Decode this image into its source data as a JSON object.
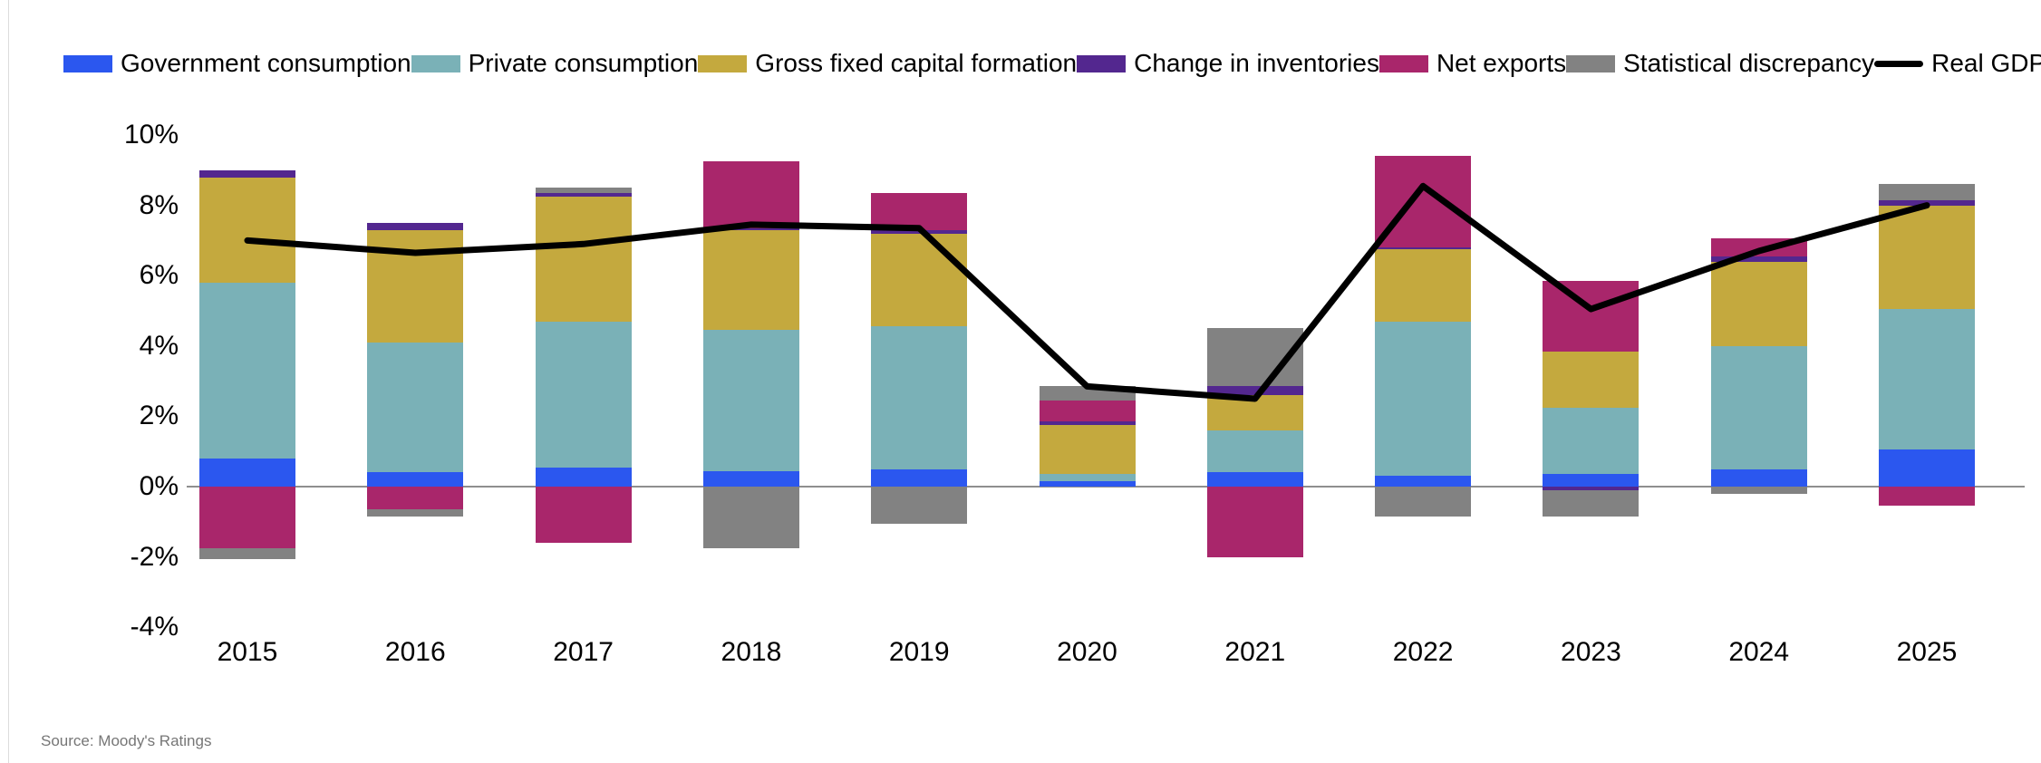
{
  "source": "Source: Moody's Ratings",
  "colors": {
    "government_consumption": "#2b57ef",
    "private_consumption": "#7ab1b7",
    "gross_fixed_capital_formation": "#c4a93e",
    "change_in_inventories": "#53278f",
    "net_exports": "#a9266b",
    "statistical_discrepancy": "#828282",
    "real_gdp_line": "#000000",
    "zero_gridline": "#8f8f8f"
  },
  "legend": [
    {
      "label": "Government consumption",
      "color": "#2b57ef",
      "type": "swatch"
    },
    {
      "label": "Private consumption",
      "color": "#7ab1b7",
      "type": "swatch"
    },
    {
      "label": "Gross fixed capital formation",
      "color": "#c4a93e",
      "type": "swatch"
    },
    {
      "label": "Change in inventories",
      "color": "#53278f",
      "type": "swatch"
    },
    {
      "label": "Net exports",
      "color": "#a9266b",
      "type": "swatch"
    },
    {
      "label": "Statistical discrepancy",
      "color": "#828282",
      "type": "swatch"
    },
    {
      "label": "Real GDP",
      "color": "#000000",
      "type": "line"
    }
  ],
  "chart_data": {
    "type": "bar",
    "stacked": true,
    "grid": "zero-line-only",
    "legend_position": "top",
    "categories": [
      "2015",
      "2016",
      "2017",
      "2018",
      "2019",
      "2020",
      "2021",
      "2022",
      "2023",
      "2024",
      "2025"
    ],
    "y_axis": {
      "unit": "%",
      "ylim": [
        -4,
        10
      ],
      "ticks": [
        {
          "label": "10%",
          "value": 10
        },
        {
          "label": "8%",
          "value": 8
        },
        {
          "label": "6%",
          "value": 6
        },
        {
          "label": "4%",
          "value": 4
        },
        {
          "label": "2%",
          "value": 2
        },
        {
          "label": "0%",
          "value": 0
        },
        {
          "label": "-2%",
          "value": -2
        },
        {
          "label": "-4%",
          "value": -4
        }
      ]
    },
    "series": [
      {
        "name": "Government consumption",
        "color": "#2b57ef",
        "values": [
          0.8,
          0.4,
          0.55,
          0.45,
          0.5,
          0.15,
          0.4,
          0.3,
          0.35,
          0.5,
          1.05
        ]
      },
      {
        "name": "Private consumption",
        "color": "#7ab1b7",
        "values": [
          5.0,
          3.7,
          4.15,
          4.0,
          4.05,
          0.2,
          1.2,
          4.4,
          1.9,
          3.5,
          4.0
        ]
      },
      {
        "name": "Gross fixed capital formation",
        "color": "#c4a93e",
        "values": [
          3.0,
          3.2,
          3.55,
          2.85,
          2.65,
          1.4,
          1.0,
          2.05,
          1.6,
          2.4,
          2.95
        ]
      },
      {
        "name": "Change in inventories",
        "color": "#53278f",
        "values": [
          0.2,
          0.2,
          0.1,
          0.05,
          0.1,
          0.1,
          0.25,
          0.05,
          -0.1,
          0.15,
          0.15
        ]
      },
      {
        "name": "Net exports",
        "color": "#a9266b",
        "values": [
          -1.75,
          -0.65,
          -1.6,
          1.9,
          1.05,
          0.6,
          -2.0,
          2.6,
          2.0,
          0.5,
          -0.55
        ]
      },
      {
        "name": "Statistical discrepancy",
        "color": "#828282",
        "values": [
          -0.3,
          -0.2,
          0.15,
          -1.75,
          -1.05,
          0.4,
          1.65,
          -0.85,
          -0.75,
          -0.2,
          0.45
        ]
      }
    ],
    "line_series": {
      "name": "Real GDP",
      "color": "#000000",
      "values": [
        7.0,
        6.65,
        6.9,
        7.45,
        7.35,
        2.85,
        2.5,
        8.55,
        5.05,
        6.7,
        8.0
      ]
    }
  }
}
